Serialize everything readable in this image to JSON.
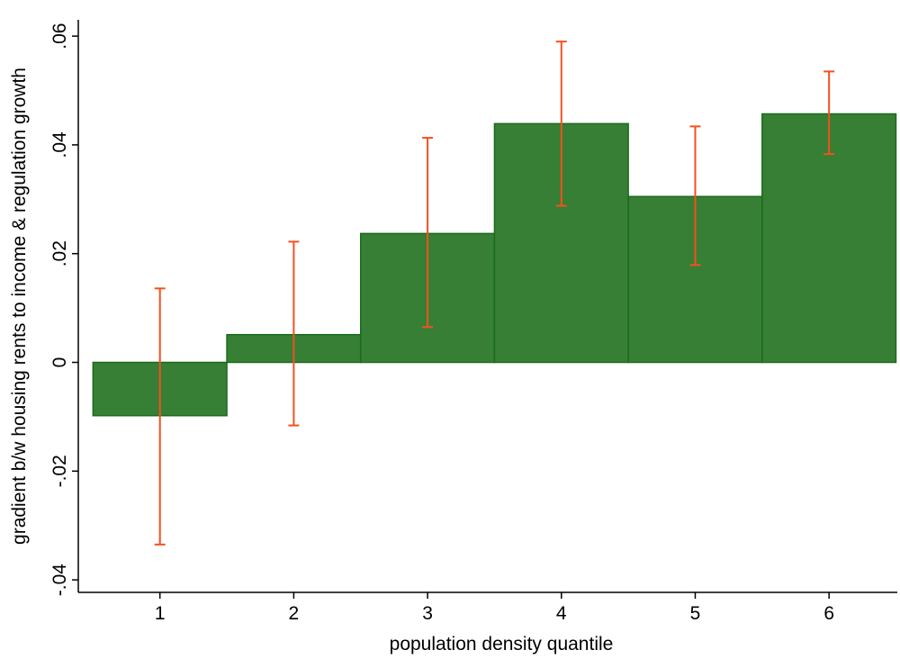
{
  "chart_data": {
    "type": "bar",
    "x_label": "population density quantile",
    "y_label": "gradient b/w housing rents to income & regulation growth",
    "x": [
      1,
      2,
      3,
      4,
      5,
      6
    ],
    "values": [
      -0.0098,
      0.0051,
      0.0237,
      0.0439,
      0.0305,
      0.0457
    ],
    "ci_low": [
      -0.0335,
      -0.0116,
      0.0065,
      0.0288,
      0.0179,
      0.0383
    ],
    "ci_high": [
      0.0136,
      0.0222,
      0.0413,
      0.059,
      0.0434,
      0.0535
    ],
    "color": "#367f35",
    "edge_color": "#1c6a1c",
    "error_color": "#f4511e",
    "xlim": [
      0.39,
      6.51
    ],
    "ylim": [
      -0.0423,
      0.063
    ],
    "xticks": [
      1,
      2,
      3,
      4,
      5,
      6
    ],
    "yticks": [
      {
        "value": -0.04,
        "label": "-.04"
      },
      {
        "value": -0.02,
        "label": "-.02"
      },
      0,
      {
        "value": 0.02,
        "label": ".02"
      },
      {
        "value": 0.04,
        "label": ".04"
      },
      {
        "value": 0.06,
        "label": ".06"
      }
    ]
  }
}
